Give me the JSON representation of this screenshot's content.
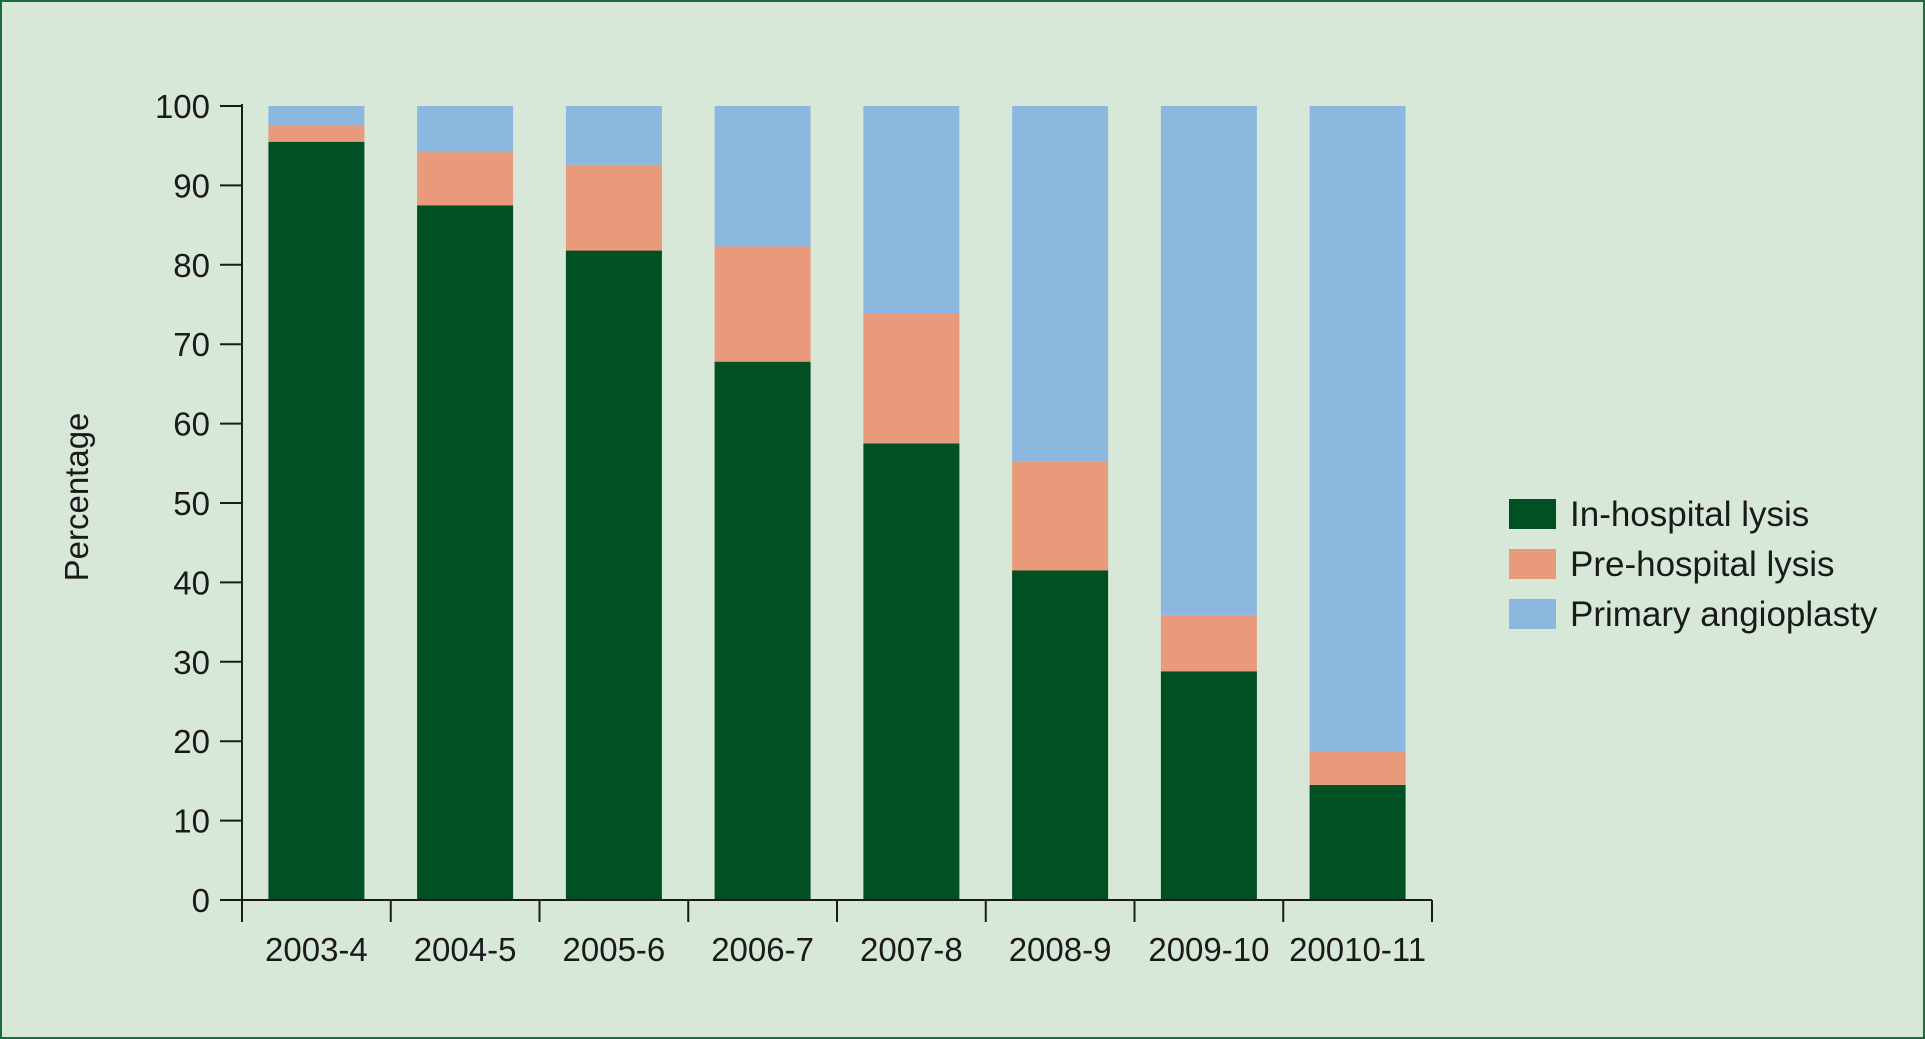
{
  "chart_data": {
    "type": "bar",
    "stacked": true,
    "title": "",
    "xlabel": "",
    "ylabel": "Percentage",
    "ylim": [
      0,
      100
    ],
    "yticks": [
      0,
      10,
      20,
      30,
      40,
      50,
      60,
      70,
      80,
      90,
      100
    ],
    "categories": [
      "2003-4",
      "2004-5",
      "2005-6",
      "2006-7",
      "2007-8",
      "2008-9",
      "2009-10",
      "20010-11"
    ],
    "series": [
      {
        "name": "In-hospital lysis",
        "color": "#005024",
        "values": [
          95.5,
          87.5,
          81.8,
          67.8,
          57.5,
          41.5,
          28.8,
          14.5
        ]
      },
      {
        "name": "Pre-hospital lysis",
        "color": "#e89a7a",
        "values": [
          2.0,
          6.7,
          10.8,
          14.5,
          16.3,
          13.7,
          7.0,
          4.2
        ]
      },
      {
        "name": "Primary angioplasty",
        "color": "#8cb8df",
        "values": [
          2.5,
          5.8,
          7.4,
          17.7,
          26.2,
          44.8,
          64.2,
          81.3
        ]
      }
    ],
    "legend_position": "right",
    "grid": false
  }
}
